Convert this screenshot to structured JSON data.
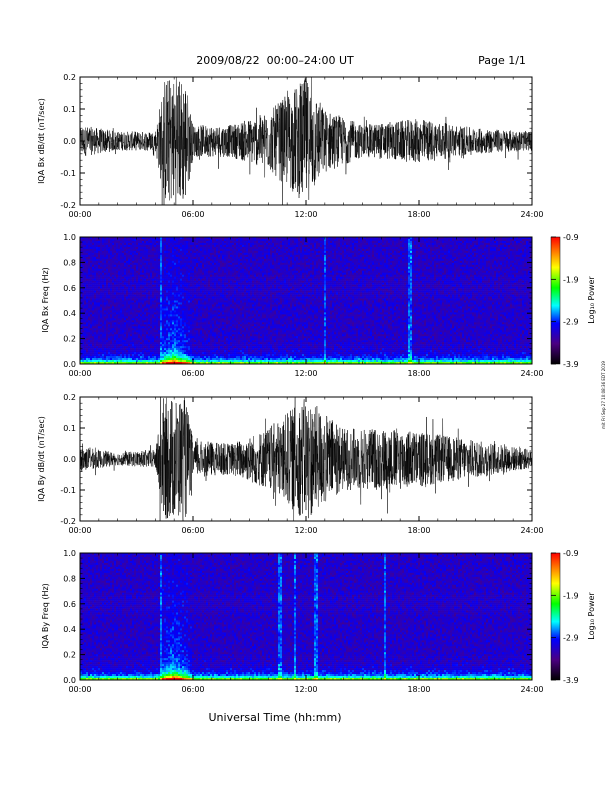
{
  "header": {
    "title": "2009/08/22  00:00–24:00 UT",
    "page": "Page 1/1"
  },
  "side_note": "mit Fri Sep 27 10:08:36 EDT 2019",
  "xlabel": "Universal Time (hh:mm)",
  "x_ticks": [
    "00:00",
    "06:00",
    "12:00",
    "18:00",
    "24:00"
  ],
  "colorbar": {
    "label": "Log₁₀ Power",
    "ticks": [
      "-0.9",
      "-1.9",
      "-2.9",
      "-3.9"
    ]
  },
  "chart_data": [
    {
      "type": "line",
      "ylabel": "IQA Bx dB/dt (nT/sec)",
      "xlim": [
        0,
        24
      ],
      "ylim": [
        -0.2,
        0.2
      ],
      "y_ticks": [
        "0.2",
        "0.1",
        "0.0",
        "-0.1",
        "-0.2"
      ],
      "note": "dense high-frequency magnetometer trace; saturated burst ~04:30–05:40 UT; enhanced activity ~10:00–13:30 UT",
      "envelope": [
        {
          "x": 0,
          "amp": 0.05
        },
        {
          "x": 2,
          "amp": 0.03
        },
        {
          "x": 4,
          "amp": 0.03
        },
        {
          "x": 4.5,
          "amp": 0.2
        },
        {
          "x": 5.6,
          "amp": 0.2
        },
        {
          "x": 6,
          "amp": 0.05
        },
        {
          "x": 8,
          "amp": 0.05
        },
        {
          "x": 10,
          "amp": 0.09
        },
        {
          "x": 12,
          "amp": 0.2
        },
        {
          "x": 13,
          "amp": 0.1
        },
        {
          "x": 15,
          "amp": 0.05
        },
        {
          "x": 18,
          "amp": 0.07
        },
        {
          "x": 21,
          "amp": 0.04
        },
        {
          "x": 24,
          "amp": 0.03
        }
      ]
    },
    {
      "type": "heatmap",
      "ylabel": "IQA Bx Freq (Hz)",
      "xlim": [
        0,
        24
      ],
      "ylim": [
        0.0,
        1.0
      ],
      "y_ticks": [
        "1.0",
        "0.8",
        "0.6",
        "0.4",
        "0.2",
        "0.0"
      ],
      "colorscale_log10_power": [
        -3.9,
        -0.9
      ],
      "note": "spectrogram; strongest power below ~0.1 Hz, peak ~05:00 UT"
    },
    {
      "type": "line",
      "ylabel": "IQA By dB/dt (nT/sec)",
      "xlim": [
        0,
        24
      ],
      "ylim": [
        -0.2,
        0.2
      ],
      "y_ticks": [
        "0.2",
        "0.1",
        "0.0",
        "-0.1",
        "-0.2"
      ],
      "note": "dense high-frequency magnetometer trace; saturated burst ~04:20–05:40 UT; enhanced activity ~09:00–22:00 UT",
      "envelope": [
        {
          "x": 0,
          "amp": 0.04
        },
        {
          "x": 2,
          "amp": 0.02
        },
        {
          "x": 4,
          "amp": 0.03
        },
        {
          "x": 4.4,
          "amp": 0.2
        },
        {
          "x": 5.6,
          "amp": 0.2
        },
        {
          "x": 6,
          "amp": 0.06
        },
        {
          "x": 8,
          "amp": 0.05
        },
        {
          "x": 10,
          "amp": 0.1
        },
        {
          "x": 12,
          "amp": 0.2
        },
        {
          "x": 14,
          "amp": 0.1
        },
        {
          "x": 17,
          "amp": 0.1
        },
        {
          "x": 21,
          "amp": 0.06
        },
        {
          "x": 24,
          "amp": 0.03
        }
      ]
    },
    {
      "type": "heatmap",
      "ylabel": "IQA By Freq (Hz)",
      "xlim": [
        0,
        24
      ],
      "ylim": [
        0.0,
        1.0
      ],
      "y_ticks": [
        "1.0",
        "0.8",
        "0.6",
        "0.4",
        "0.2",
        "0.0"
      ],
      "colorscale_log10_power": [
        -3.9,
        -0.9
      ],
      "note": "spectrogram; strongest power below ~0.1 Hz, peak ~05:00 UT, vertical streaks near 10:30, 11:30, 12:30 UT"
    }
  ]
}
